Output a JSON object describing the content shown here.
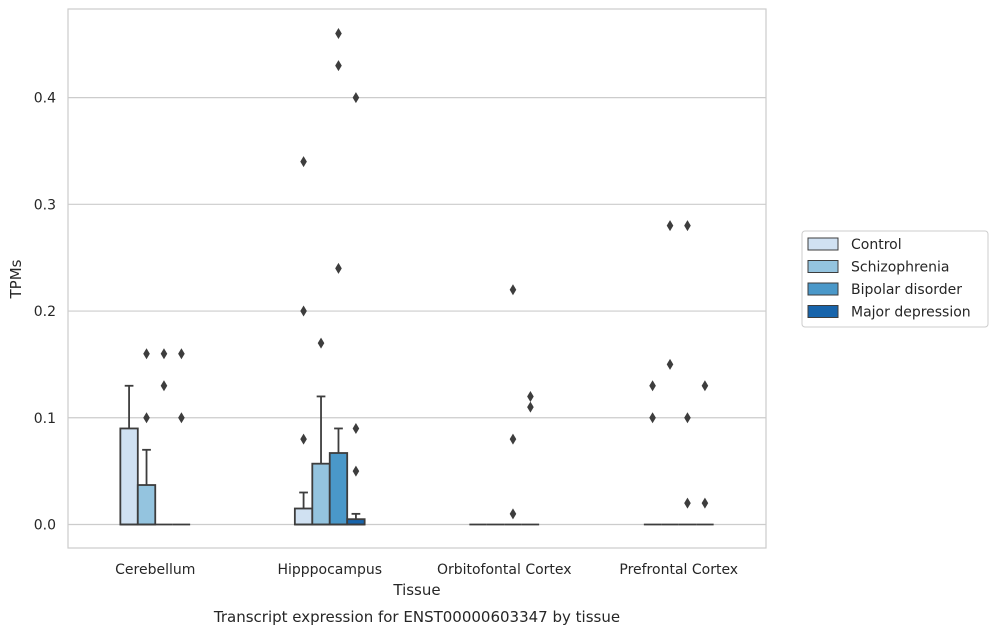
{
  "caption": "Transcript expression for ENST00000603347 by tissue",
  "chart_data": {
    "type": "boxplot",
    "xlabel": "Tissue",
    "ylabel": "TPMs",
    "ylim": [
      -0.022,
      0.483
    ],
    "yticks": [
      0.0,
      0.1,
      0.2,
      0.3,
      0.4
    ],
    "ytick_labels": [
      "0.0",
      "0.1",
      "0.2",
      "0.3",
      "0.4"
    ],
    "grid": "horizontal",
    "legend_position": "right",
    "categories": [
      "Cerebellum",
      "Hipppocampus",
      "Orbitofontal Cortex",
      "Prefrontal Cortex"
    ],
    "series": [
      {
        "name": "Control",
        "color": "#d0e1f2",
        "boxes": [
          {
            "whisker_low": 0.0,
            "q1": 0.0,
            "median": 0.0,
            "q3": 0.09,
            "whisker_high": 0.13,
            "outliers": []
          },
          {
            "whisker_low": 0.0,
            "q1": 0.0,
            "median": 0.0,
            "q3": 0.015,
            "whisker_high": 0.03,
            "outliers": [
              0.08,
              0.2,
              0.34
            ]
          },
          {
            "whisker_low": 0.0,
            "q1": 0.0,
            "median": 0.0,
            "q3": 0.0,
            "whisker_high": 0.0,
            "outliers": []
          },
          {
            "whisker_low": 0.0,
            "q1": 0.0,
            "median": 0.0,
            "q3": 0.0,
            "whisker_high": 0.0,
            "outliers": [
              0.1,
              0.13
            ]
          }
        ]
      },
      {
        "name": "Schizophrenia",
        "color": "#94c4df",
        "boxes": [
          {
            "whisker_low": 0.0,
            "q1": 0.0,
            "median": 0.0,
            "q3": 0.037,
            "whisker_high": 0.07,
            "outliers": [
              0.1,
              0.16
            ]
          },
          {
            "whisker_low": 0.0,
            "q1": 0.0,
            "median": 0.0,
            "q3": 0.057,
            "whisker_high": 0.12,
            "outliers": [
              0.17
            ]
          },
          {
            "whisker_low": 0.0,
            "q1": 0.0,
            "median": 0.0,
            "q3": 0.0,
            "whisker_high": 0.0,
            "outliers": []
          },
          {
            "whisker_low": 0.0,
            "q1": 0.0,
            "median": 0.0,
            "q3": 0.0,
            "whisker_high": 0.0,
            "outliers": [
              0.15,
              0.28
            ]
          }
        ]
      },
      {
        "name": "Bipolar disorder",
        "color": "#4a98c9",
        "boxes": [
          {
            "whisker_low": 0.0,
            "q1": 0.0,
            "median": 0.0,
            "q3": 0.0,
            "whisker_high": 0.0,
            "outliers": [
              0.13,
              0.16
            ]
          },
          {
            "whisker_low": 0.0,
            "q1": 0.0,
            "median": 0.0,
            "q3": 0.067,
            "whisker_high": 0.09,
            "outliers": [
              0.24,
              0.43,
              0.46
            ]
          },
          {
            "whisker_low": 0.0,
            "q1": 0.0,
            "median": 0.0,
            "q3": 0.0,
            "whisker_high": 0.0,
            "outliers": [
              0.01,
              0.08,
              0.22
            ]
          },
          {
            "whisker_low": 0.0,
            "q1": 0.0,
            "median": 0.0,
            "q3": 0.0,
            "whisker_high": 0.0,
            "outliers": [
              0.02,
              0.1,
              0.28
            ]
          }
        ]
      },
      {
        "name": "Major depression",
        "color": "#1764ab",
        "boxes": [
          {
            "whisker_low": 0.0,
            "q1": 0.0,
            "median": 0.0,
            "q3": 0.0,
            "whisker_high": 0.0,
            "outliers": [
              0.1,
              0.16
            ]
          },
          {
            "whisker_low": 0.0,
            "q1": 0.0,
            "median": 0.0,
            "q3": 0.005,
            "whisker_high": 0.01,
            "outliers": [
              0.05,
              0.09,
              0.4
            ]
          },
          {
            "whisker_low": 0.0,
            "q1": 0.0,
            "median": 0.0,
            "q3": 0.0,
            "whisker_high": 0.0,
            "outliers": [
              0.11,
              0.12
            ]
          },
          {
            "whisker_low": 0.0,
            "q1": 0.0,
            "median": 0.0,
            "q3": 0.0,
            "whisker_high": 0.0,
            "outliers": [
              0.02,
              0.13
            ]
          }
        ]
      }
    ]
  }
}
